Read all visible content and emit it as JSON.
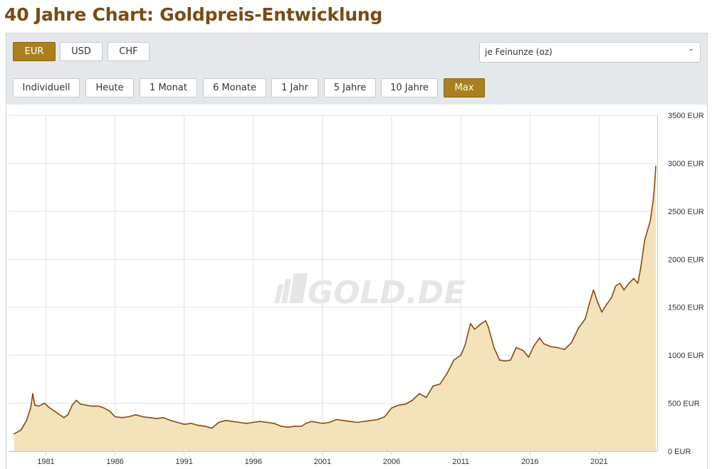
{
  "page": {
    "title": "40 Jahre Chart: Goldpreis-Entwicklung"
  },
  "currency_buttons": [
    {
      "label": "EUR",
      "active": true
    },
    {
      "label": "USD",
      "active": false
    },
    {
      "label": "CHF",
      "active": false
    }
  ],
  "unit_select": {
    "value": "je Feinunze (oz)"
  },
  "range_buttons": [
    {
      "label": "Individuell",
      "active": false
    },
    {
      "label": "Heute",
      "active": false
    },
    {
      "label": "1 Monat",
      "active": false
    },
    {
      "label": "6 Monate",
      "active": false
    },
    {
      "label": "1 Jahr",
      "active": false
    },
    {
      "label": "5 Jahre",
      "active": false
    },
    {
      "label": "10 Jahre",
      "active": false
    },
    {
      "label": "Max",
      "active": true
    }
  ],
  "watermark": {
    "text": "GOLD.DE"
  },
  "colors": {
    "title": "#7a4a12",
    "accent": "#a8811e",
    "line": "#8a4a08",
    "area": "#f3e3bb",
    "grid": "#e3e3e3"
  },
  "chart_data": {
    "type": "area",
    "title": "",
    "xlabel": "",
    "ylabel": "",
    "x_ticks": [
      "1981",
      "1986",
      "1991",
      "1996",
      "2001",
      "2006",
      "2011",
      "2016",
      "2021"
    ],
    "x_tick_values": [
      1981,
      1986,
      1991,
      1996,
      2001,
      2006,
      2011,
      2016,
      2021
    ],
    "y_ticks": [
      "0 EUR",
      "500 EUR",
      "1000 EUR",
      "1500 EUR",
      "2000 EUR",
      "2500 EUR",
      "3000 EUR",
      "3500 EUR"
    ],
    "y_tick_values": [
      0,
      500,
      1000,
      1500,
      2000,
      2500,
      3000,
      3500
    ],
    "xlim": [
      1978.3,
      2025.2
    ],
    "ylim": [
      0,
      3500
    ],
    "grid": true,
    "y_axis_side": "right",
    "series": [
      {
        "values": [
          [
            1978.7,
            180
          ],
          [
            1979.2,
            220
          ],
          [
            1979.6,
            320
          ],
          [
            1979.9,
            450
          ],
          [
            1980.05,
            600
          ],
          [
            1980.2,
            480
          ],
          [
            1980.5,
            470
          ],
          [
            1980.9,
            500
          ],
          [
            1981.2,
            460
          ],
          [
            1981.6,
            420
          ],
          [
            1982.0,
            380
          ],
          [
            1982.3,
            350
          ],
          [
            1982.6,
            380
          ],
          [
            1982.9,
            480
          ],
          [
            1983.2,
            530
          ],
          [
            1983.5,
            490
          ],
          [
            1983.9,
            480
          ],
          [
            1984.3,
            470
          ],
          [
            1984.8,
            470
          ],
          [
            1985.2,
            450
          ],
          [
            1985.6,
            420
          ],
          [
            1986.0,
            360
          ],
          [
            1986.5,
            350
          ],
          [
            1987.0,
            360
          ],
          [
            1987.5,
            380
          ],
          [
            1988.0,
            360
          ],
          [
            1988.5,
            350
          ],
          [
            1989.0,
            340
          ],
          [
            1989.5,
            350
          ],
          [
            1990.0,
            320
          ],
          [
            1990.5,
            300
          ],
          [
            1991.0,
            280
          ],
          [
            1991.5,
            290
          ],
          [
            1992.0,
            270
          ],
          [
            1992.5,
            260
          ],
          [
            1993.0,
            240
          ],
          [
            1993.5,
            300
          ],
          [
            1994.0,
            320
          ],
          [
            1994.5,
            310
          ],
          [
            1995.0,
            300
          ],
          [
            1995.5,
            290
          ],
          [
            1996.0,
            300
          ],
          [
            1996.5,
            310
          ],
          [
            1997.0,
            300
          ],
          [
            1997.5,
            290
          ],
          [
            1998.0,
            260
          ],
          [
            1998.5,
            250
          ],
          [
            1999.0,
            260
          ],
          [
            1999.5,
            260
          ],
          [
            1999.8,
            290
          ],
          [
            2000.2,
            310
          ],
          [
            2000.6,
            300
          ],
          [
            2001.0,
            290
          ],
          [
            2001.5,
            300
          ],
          [
            2002.0,
            330
          ],
          [
            2002.5,
            320
          ],
          [
            2003.0,
            310
          ],
          [
            2003.5,
            300
          ],
          [
            2004.0,
            310
          ],
          [
            2004.5,
            320
          ],
          [
            2005.0,
            330
          ],
          [
            2005.5,
            360
          ],
          [
            2006.0,
            450
          ],
          [
            2006.5,
            480
          ],
          [
            2007.0,
            490
          ],
          [
            2007.5,
            530
          ],
          [
            2008.0,
            600
          ],
          [
            2008.5,
            560
          ],
          [
            2009.0,
            680
          ],
          [
            2009.5,
            700
          ],
          [
            2010.0,
            810
          ],
          [
            2010.5,
            950
          ],
          [
            2011.0,
            1000
          ],
          [
            2011.3,
            1100
          ],
          [
            2011.7,
            1330
          ],
          [
            2012.0,
            1270
          ],
          [
            2012.4,
            1320
          ],
          [
            2012.8,
            1360
          ],
          [
            2013.0,
            1290
          ],
          [
            2013.4,
            1080
          ],
          [
            2013.8,
            950
          ],
          [
            2014.2,
            940
          ],
          [
            2014.6,
            950
          ],
          [
            2015.0,
            1080
          ],
          [
            2015.5,
            1050
          ],
          [
            2015.9,
            980
          ],
          [
            2016.3,
            1100
          ],
          [
            2016.7,
            1180
          ],
          [
            2017.0,
            1120
          ],
          [
            2017.5,
            1090
          ],
          [
            2018.0,
            1080
          ],
          [
            2018.5,
            1060
          ],
          [
            2019.0,
            1130
          ],
          [
            2019.5,
            1280
          ],
          [
            2020.0,
            1380
          ],
          [
            2020.3,
            1540
          ],
          [
            2020.6,
            1680
          ],
          [
            2020.9,
            1550
          ],
          [
            2021.2,
            1450
          ],
          [
            2021.5,
            1520
          ],
          [
            2021.9,
            1600
          ],
          [
            2022.2,
            1720
          ],
          [
            2022.5,
            1750
          ],
          [
            2022.8,
            1680
          ],
          [
            2023.1,
            1740
          ],
          [
            2023.5,
            1800
          ],
          [
            2023.8,
            1750
          ],
          [
            2024.0,
            1900
          ],
          [
            2024.3,
            2200
          ],
          [
            2024.7,
            2400
          ],
          [
            2024.9,
            2600
          ],
          [
            2025.0,
            2750
          ],
          [
            2025.1,
            2970
          ]
        ]
      }
    ]
  }
}
